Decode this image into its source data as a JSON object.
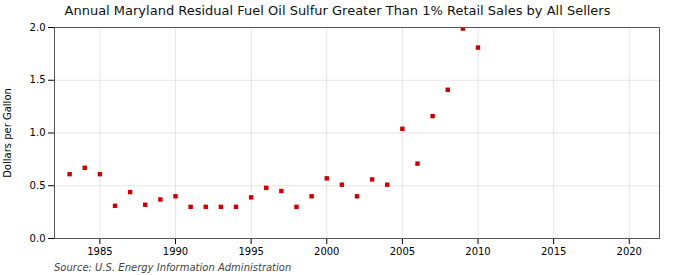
{
  "chart_data": {
    "type": "scatter",
    "title": "Annual Maryland Residual Fuel Oil Sulfur Greater Than 1% Retail Sales by All Sellers",
    "ylabel": "Dollars per Gallon",
    "annotations": [
      "Source: U.S. Energy Information Administration"
    ],
    "x": [
      1983,
      1984,
      1985,
      1986,
      1987,
      1988,
      1989,
      1990,
      1991,
      1992,
      1993,
      1994,
      1995,
      1996,
      1997,
      1998,
      1999,
      2000,
      2001,
      2002,
      2003,
      2004,
      2005,
      2006,
      2007,
      2008,
      2009,
      2010
    ],
    "values": [
      0.61,
      0.67,
      0.61,
      0.31,
      0.44,
      0.32,
      0.37,
      0.4,
      0.3,
      0.3,
      0.3,
      0.3,
      0.39,
      0.48,
      0.45,
      0.3,
      0.4,
      0.57,
      0.51,
      0.4,
      0.56,
      0.51,
      1.04,
      0.71,
      1.16,
      1.41,
      1.99,
      1.81
    ],
    "color": "#cc0000",
    "marker": "square",
    "xlim": [
      1982,
      2022
    ],
    "xticks": [
      1985,
      1990,
      1995,
      2000,
      2005,
      2010,
      2015,
      2020
    ],
    "ylim": [
      0.0,
      2.0
    ],
    "yticks": [
      {
        "value": 0.0,
        "label": "0.0"
      },
      0.5,
      {
        "value": 1.0,
        "label": "1.0"
      },
      1.5,
      {
        "value": 2.0,
        "label": "2.0"
      }
    ],
    "grid": true
  }
}
